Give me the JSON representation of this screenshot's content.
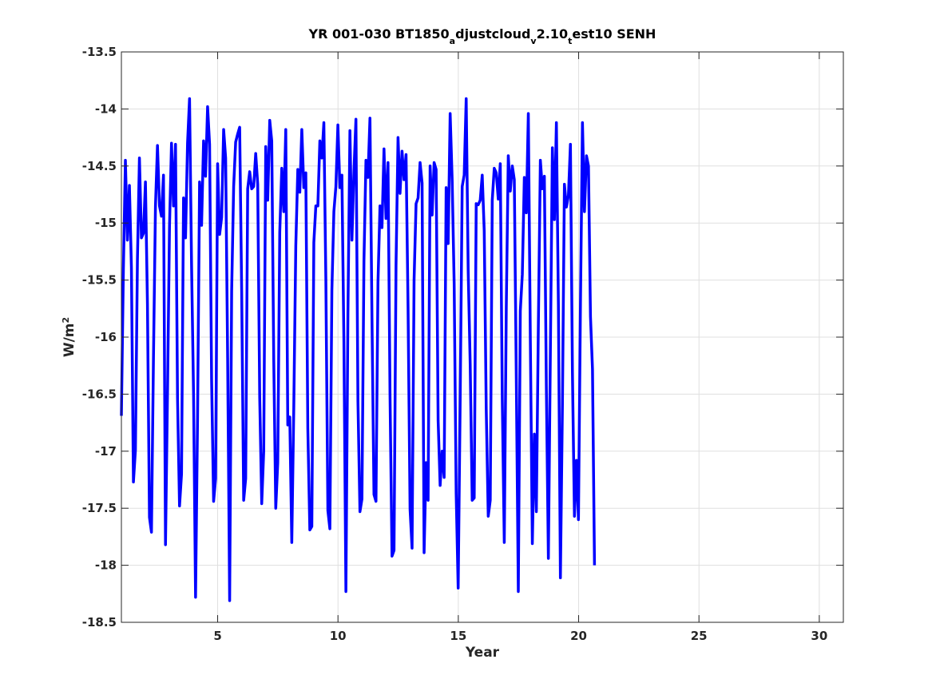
{
  "chart_data": {
    "type": "line",
    "title": {
      "parts": [
        {
          "text": "YR 001-030 BT1850"
        },
        {
          "text": "a",
          "sub": true
        },
        {
          "text": "djustcloud"
        },
        {
          "text": "v",
          "sub": true
        },
        {
          "text": "2.10"
        },
        {
          "text": "t",
          "sub": true
        },
        {
          "text": "est10 SENH"
        }
      ]
    },
    "xlabel": "Year",
    "ylabel": {
      "base": "W/m",
      "sup": "2"
    },
    "xlim": [
      1,
      31
    ],
    "ylim": [
      -18.5,
      -13.5
    ],
    "xticks": [
      5,
      10,
      15,
      20,
      25,
      30
    ],
    "yticks": [
      -18.5,
      -18,
      -17.5,
      -17,
      -16.5,
      -16,
      -15.5,
      -15,
      -14.5,
      -14,
      -13.5
    ],
    "grid": true,
    "colors": {
      "line": "#0000ff",
      "grid": "#dfdfdf",
      "axis": "#262626"
    },
    "series": [
      {
        "x_start": 1,
        "x_step": 0.0833,
        "values": [
          -16.69,
          -15.4,
          -14.45,
          -15.15,
          -14.67,
          -15.39,
          -17.27,
          -16.99,
          -15.32,
          -14.43,
          -15.13,
          -15.09,
          -14.64,
          -15.71,
          -17.58,
          -17.71,
          -16.18,
          -14.85,
          -14.32,
          -14.85,
          -14.94,
          -14.58,
          -17.82,
          -16.5,
          -15.03,
          -14.3,
          -14.85,
          -14.31,
          -16.53,
          -17.48,
          -17.2,
          -14.78,
          -15.13,
          -14.3,
          -13.91,
          -15.36,
          -16.5,
          -18.28,
          -16.7,
          -14.64,
          -15.02,
          -14.28,
          -14.59,
          -13.98,
          -14.31,
          -16.37,
          -17.44,
          -17.24,
          -14.48,
          -15.1,
          -14.95,
          -14.18,
          -14.43,
          -16.18,
          -18.31,
          -15.6,
          -14.68,
          -14.29,
          -14.22,
          -14.16,
          -15.6,
          -17.43,
          -17.24,
          -14.7,
          -14.55,
          -14.7,
          -14.68,
          -14.39,
          -14.66,
          -16.53,
          -17.46,
          -17.0,
          -14.33,
          -14.8,
          -14.1,
          -14.28,
          -16.2,
          -17.5,
          -17.1,
          -15.08,
          -14.52,
          -14.9,
          -14.18,
          -16.77,
          -16.7,
          -17.8,
          -16.61,
          -15.2,
          -14.53,
          -14.73,
          -14.18,
          -14.69,
          -14.56,
          -16.8,
          -17.69,
          -17.66,
          -15.17,
          -14.85,
          -14.85,
          -14.28,
          -14.43,
          -14.12,
          -15.5,
          -17.52,
          -17.68,
          -15.59,
          -14.9,
          -14.68,
          -14.14,
          -14.69,
          -14.58,
          -16.04,
          -18.23,
          -15.8,
          -14.19,
          -15.15,
          -14.55,
          -14.09,
          -16.56,
          -17.53,
          -17.42,
          -15.33,
          -14.45,
          -14.6,
          -14.08,
          -15.83,
          -17.38,
          -17.44,
          -15.52,
          -14.85,
          -15.04,
          -14.35,
          -14.96,
          -14.47,
          -16.5,
          -17.92,
          -17.87,
          -15.37,
          -14.25,
          -14.74,
          -14.37,
          -14.62,
          -14.4,
          -15.74,
          -17.51,
          -17.85,
          -15.5,
          -14.83,
          -14.78,
          -14.47,
          -14.65,
          -17.89,
          -17.1,
          -17.43,
          -14.5,
          -14.93,
          -14.47,
          -14.53,
          -16.73,
          -17.3,
          -17.0,
          -17.23,
          -14.69,
          -15.18,
          -14.04,
          -14.62,
          -15.53,
          -17.37,
          -18.2,
          -16.55,
          -14.68,
          -14.58,
          -13.91,
          -15.42,
          -16.24,
          -17.43,
          -17.41,
          -14.83,
          -14.84,
          -14.8,
          -14.58,
          -15.07,
          -16.63,
          -17.57,
          -17.43,
          -14.8,
          -14.52,
          -14.56,
          -14.79,
          -14.48,
          -16.54,
          -17.8,
          -15.74,
          -14.41,
          -14.72,
          -14.5,
          -14.62,
          -16.36,
          -18.23,
          -15.77,
          -15.45,
          -14.6,
          -14.91,
          -14.04,
          -16.02,
          -17.81,
          -16.85,
          -17.53,
          -15.9,
          -14.45,
          -14.7,
          -14.59,
          -16.45,
          -17.94,
          -16.12,
          -14.34,
          -14.97,
          -14.12,
          -15.72,
          -18.11,
          -16.6,
          -14.66,
          -14.86,
          -14.76,
          -14.31,
          -16.31,
          -17.57,
          -17.08,
          -17.6,
          -15.71,
          -14.12,
          -14.9,
          -14.41,
          -14.5,
          -15.82,
          -16.28,
          -18.0
        ]
      }
    ]
  }
}
